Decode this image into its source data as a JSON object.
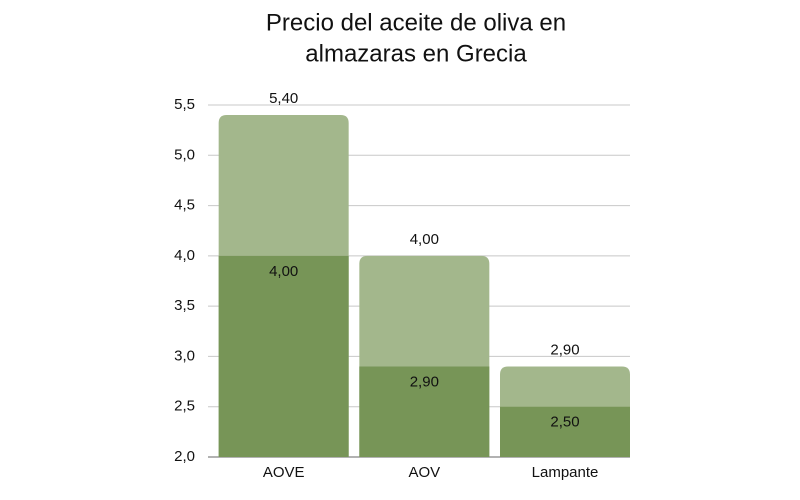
{
  "chart_data": {
    "type": "overlay-bar",
    "title": [
      "Precio del aceite de oliva en",
      "almazaras en Grecia"
    ],
    "categories": [
      "AOVE",
      "AOV",
      "Lampante"
    ],
    "series": [
      {
        "color": "#a3b78c",
        "values": [
          5.4,
          4.0,
          2.9
        ],
        "value_labels": [
          "5,40",
          "4,00",
          "2,90"
        ]
      },
      {
        "color": "#779557",
        "values": [
          4.0,
          2.9,
          2.5
        ],
        "value_labels": [
          "4,00",
          "2,90",
          "2,50"
        ]
      }
    ],
    "ylim": [
      2.0,
      5.5
    ],
    "yticks": [
      {
        "value": 2.0,
        "label": "2,0"
      },
      {
        "value": 2.5,
        "label": "2,5"
      },
      {
        "value": 3.0,
        "label": "3,0"
      },
      {
        "value": 3.5,
        "label": "3,5"
      },
      {
        "value": 4.0,
        "label": "4,0"
      },
      {
        "value": 4.5,
        "label": "4,5"
      },
      {
        "value": 5.0,
        "label": "5,0"
      },
      {
        "value": 5.5,
        "label": "5,5"
      }
    ],
    "grid": true
  }
}
